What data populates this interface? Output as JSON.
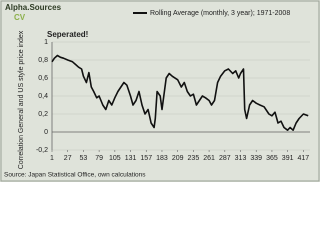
{
  "chart_data": {
    "type": "line",
    "logo": {
      "name": "Alpha.Sources",
      "sub": "CV"
    },
    "annotation": "Seperated!",
    "ylabel": "Correlation General and US style price index",
    "source": "Source: Japan Statistical Office, own calculations",
    "legend": "top",
    "grid": true,
    "xlim": [
      1,
      428
    ],
    "xticks": [
      1,
      27,
      53,
      79,
      105,
      131,
      157,
      183,
      209,
      235,
      261,
      287,
      313,
      339,
      365,
      391,
      417
    ],
    "ylim": [
      -0.2,
      1
    ],
    "yticks": [
      {
        "value": -0.2,
        "label": "-0,2"
      },
      0,
      {
        "value": 0.2,
        "label": "0,2"
      },
      {
        "value": 0.4,
        "label": "0,4"
      },
      {
        "value": 0.6,
        "label": "0,6"
      },
      {
        "value": 0.8,
        "label": "0,8"
      },
      1
    ],
    "x": [
      1,
      5,
      10,
      15,
      20,
      27,
      35,
      40,
      45,
      50,
      53,
      58,
      62,
      66,
      70,
      75,
      79,
      85,
      90,
      95,
      100,
      105,
      110,
      115,
      120,
      125,
      131,
      135,
      140,
      145,
      150,
      155,
      160,
      165,
      170,
      172,
      175,
      180,
      183,
      190,
      195,
      200,
      209,
      215,
      220,
      225,
      230,
      235,
      240,
      245,
      250,
      255,
      261,
      265,
      270,
      275,
      280,
      287,
      293,
      300,
      305,
      310,
      313,
      318,
      320,
      323,
      328,
      333,
      339,
      345,
      352,
      360,
      365,
      370,
      375,
      380,
      385,
      391,
      395,
      400,
      405,
      410,
      417,
      425
    ],
    "series": [
      {
        "name": "Rolling Average (monthly, 3 year); 1971-2008",
        "color": "#111111",
        "values": [
          0.78,
          0.82,
          0.85,
          0.83,
          0.82,
          0.8,
          0.78,
          0.75,
          0.72,
          0.7,
          0.62,
          0.55,
          0.66,
          0.5,
          0.45,
          0.38,
          0.4,
          0.3,
          0.25,
          0.35,
          0.3,
          0.38,
          0.45,
          0.5,
          0.55,
          0.52,
          0.4,
          0.3,
          0.35,
          0.45,
          0.3,
          0.2,
          0.25,
          0.1,
          0.05,
          0.15,
          0.45,
          0.4,
          0.25,
          0.6,
          0.65,
          0.62,
          0.58,
          0.5,
          0.55,
          0.45,
          0.4,
          0.42,
          0.3,
          0.35,
          0.4,
          0.38,
          0.35,
          0.3,
          0.35,
          0.55,
          0.62,
          0.68,
          0.7,
          0.65,
          0.68,
          0.6,
          0.65,
          0.7,
          0.25,
          0.15,
          0.3,
          0.35,
          0.32,
          0.3,
          0.28,
          0.2,
          0.18,
          0.22,
          0.1,
          0.12,
          0.05,
          0.02,
          0.05,
          0.02,
          0.1,
          0.15,
          0.2,
          0.18
        ]
      }
    ]
  }
}
